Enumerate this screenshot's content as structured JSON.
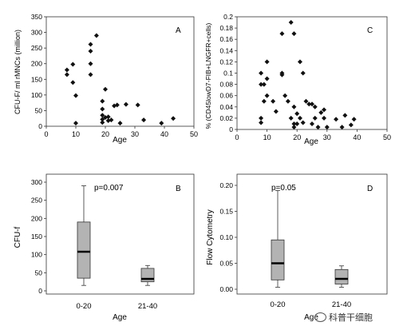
{
  "chart_data": [
    {
      "panel": "A",
      "type": "scatter",
      "ylabel": "CFU-F/ ml rMNCs (million)",
      "xlabel": "Age",
      "xlim": [
        0,
        50
      ],
      "ylim": [
        0,
        350
      ],
      "xticks": [
        "0",
        "10",
        "20",
        "30",
        "40",
        "50"
      ],
      "yticks": [
        "0",
        "50",
        "100",
        "150",
        "200",
        "250",
        "300",
        "350"
      ],
      "points": [
        {
          "x": 7,
          "y": 180
        },
        {
          "x": 7,
          "y": 165
        },
        {
          "x": 9,
          "y": 140
        },
        {
          "x": 9,
          "y": 198
        },
        {
          "x": 10,
          "y": 98
        },
        {
          "x": 10,
          "y": 10
        },
        {
          "x": 15,
          "y": 262
        },
        {
          "x": 15,
          "y": 240
        },
        {
          "x": 15,
          "y": 200
        },
        {
          "x": 15,
          "y": 165
        },
        {
          "x": 17,
          "y": 290
        },
        {
          "x": 19,
          "y": 80
        },
        {
          "x": 19,
          "y": 55
        },
        {
          "x": 19,
          "y": 35
        },
        {
          "x": 19,
          "y": 22
        },
        {
          "x": 19,
          "y": 12
        },
        {
          "x": 20,
          "y": 118
        },
        {
          "x": 20,
          "y": 28
        },
        {
          "x": 21,
          "y": 30
        },
        {
          "x": 21,
          "y": 18
        },
        {
          "x": 22,
          "y": 20
        },
        {
          "x": 23,
          "y": 65
        },
        {
          "x": 24,
          "y": 68
        },
        {
          "x": 25,
          "y": 10
        },
        {
          "x": 27,
          "y": 70
        },
        {
          "x": 31,
          "y": 68
        },
        {
          "x": 33,
          "y": 20
        },
        {
          "x": 39,
          "y": 10
        },
        {
          "x": 43,
          "y": 25
        }
      ]
    },
    {
      "panel": "C",
      "type": "scatter",
      "ylabel": "% (CD45lowD7-FIB+LNGFR+cells)",
      "xlabel": "Age",
      "xlim": [
        0,
        50
      ],
      "ylim": [
        0,
        0.2
      ],
      "xticks": [
        "0",
        "10",
        "20",
        "30",
        "40",
        "50"
      ],
      "yticks": [
        "0",
        "0.02",
        "0.04",
        "0.06",
        "0.08",
        "0.1",
        "0.12",
        "0.14",
        "0.16",
        "0.18",
        "0.2"
      ],
      "points": [
        {
          "x": 8,
          "y": 0.1
        },
        {
          "x": 8,
          "y": 0.08
        },
        {
          "x": 8,
          "y": 0.02
        },
        {
          "x": 8,
          "y": 0.012
        },
        {
          "x": 9,
          "y": 0.08
        },
        {
          "x": 9,
          "y": 0.05
        },
        {
          "x": 10,
          "y": 0.12
        },
        {
          "x": 10,
          "y": 0.09
        },
        {
          "x": 10,
          "y": 0.06
        },
        {
          "x": 12,
          "y": 0.05
        },
        {
          "x": 13,
          "y": 0.032
        },
        {
          "x": 15,
          "y": 0.17
        },
        {
          "x": 15,
          "y": 0.1
        },
        {
          "x": 15,
          "y": 0.097
        },
        {
          "x": 16,
          "y": 0.06
        },
        {
          "x": 17,
          "y": 0.05
        },
        {
          "x": 18,
          "y": 0.19
        },
        {
          "x": 18,
          "y": 0.02
        },
        {
          "x": 19,
          "y": 0.17
        },
        {
          "x": 19,
          "y": 0.04
        },
        {
          "x": 19,
          "y": 0.01
        },
        {
          "x": 19,
          "y": 0.004
        },
        {
          "x": 20,
          "y": 0.028
        },
        {
          "x": 20,
          "y": 0.01
        },
        {
          "x": 21,
          "y": 0.12
        },
        {
          "x": 21,
          "y": 0.02
        },
        {
          "x": 22,
          "y": 0.1
        },
        {
          "x": 22,
          "y": 0.012
        },
        {
          "x": 23,
          "y": 0.05
        },
        {
          "x": 24,
          "y": 0.045
        },
        {
          "x": 25,
          "y": 0.045
        },
        {
          "x": 25,
          "y": 0.01
        },
        {
          "x": 26,
          "y": 0.04
        },
        {
          "x": 26,
          "y": 0.02
        },
        {
          "x": 27,
          "y": 0.004
        },
        {
          "x": 28,
          "y": 0.03
        },
        {
          "x": 29,
          "y": 0.035
        },
        {
          "x": 29,
          "y": 0.02
        },
        {
          "x": 30,
          "y": 0.004
        },
        {
          "x": 33,
          "y": 0.018
        },
        {
          "x": 35,
          "y": 0.004
        },
        {
          "x": 36,
          "y": 0.025
        },
        {
          "x": 38,
          "y": 0.008
        },
        {
          "x": 39,
          "y": 0.018
        }
      ]
    },
    {
      "panel": "B",
      "type": "box",
      "ylabel": "CFU-f",
      "xlabel": "Age",
      "annotation": "p=0.007",
      "ylim": [
        0,
        300
      ],
      "yticks": [
        "0",
        "50",
        "100",
        "150",
        "200",
        "250",
        "300"
      ],
      "categories": [
        "0-20",
        "21-40"
      ],
      "boxes": [
        {
          "min": 15,
          "q1": 35,
          "median": 108,
          "q3": 190,
          "max": 290
        },
        {
          "min": 15,
          "q1": 25,
          "median": 33,
          "q3": 62,
          "max": 70
        }
      ]
    },
    {
      "panel": "D",
      "type": "box",
      "ylabel": "Flow Cytometry",
      "xlabel": "Age",
      "annotation": "p=0.05",
      "ylim": [
        0,
        0.2
      ],
      "yticks": [
        "0.00",
        "0.05",
        "0.10",
        "0.15",
        "0.20"
      ],
      "categories": [
        "0-20",
        "21-40"
      ],
      "boxes": [
        {
          "min": 0.004,
          "q1": 0.018,
          "median": 0.05,
          "q3": 0.095,
          "max": 0.19
        },
        {
          "min": 0.004,
          "q1": 0.01,
          "median": 0.02,
          "q3": 0.038,
          "max": 0.045
        }
      ]
    }
  ],
  "watermark": {
    "text": "科普干细胞",
    "icon": "wechat-icon"
  }
}
